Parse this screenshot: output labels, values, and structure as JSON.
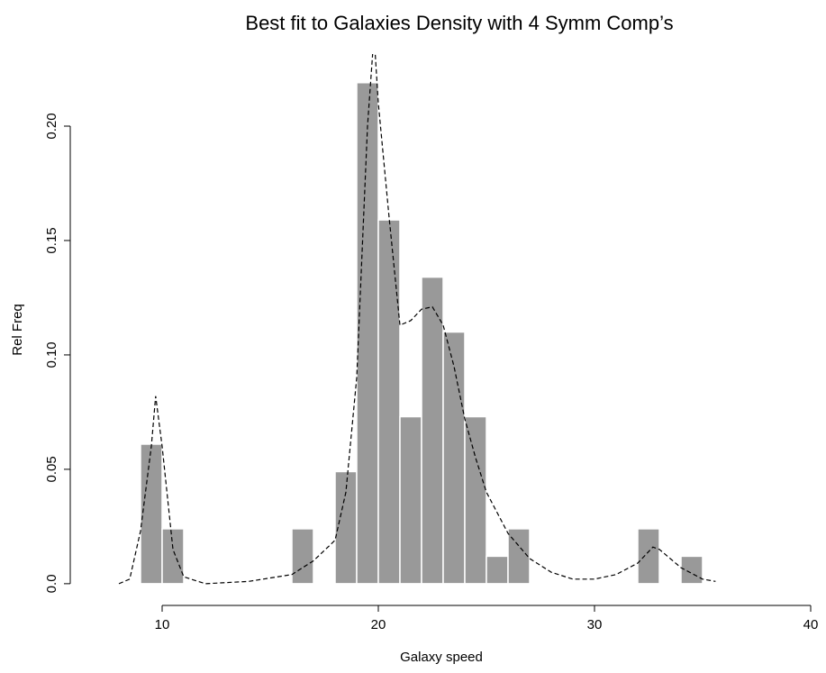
{
  "chart_data": {
    "type": "histogram",
    "title": "Best fit to Galaxies Density with  4 Symm Comp’s",
    "x_label": "Galaxy speed",
    "y_label": "Rel Freq",
    "bins": [
      9,
      10,
      11,
      12,
      13,
      14,
      15,
      16,
      17,
      18,
      19,
      20,
      21,
      22,
      23,
      24,
      25,
      26,
      27,
      28,
      29,
      30,
      31,
      32,
      33,
      34,
      35
    ],
    "values": [
      0.061,
      0.024,
      0,
      0,
      0,
      0,
      0,
      0.024,
      0,
      0.049,
      0.219,
      0.159,
      0.073,
      0.134,
      0.11,
      0.073,
      0.012,
      0.024,
      0,
      0,
      0,
      0,
      0,
      0.024,
      0,
      0.012
    ],
    "color": "#999999",
    "line": {
      "color": "#000000",
      "linestyle": "dashed",
      "x": [
        8,
        8.5,
        9,
        9.5,
        9.7,
        10,
        10.5,
        11,
        12,
        14,
        16,
        17,
        18,
        18.5,
        19,
        19.5,
        19.8,
        20,
        20.5,
        21,
        21.5,
        22,
        22.5,
        23,
        23.5,
        24,
        24.5,
        25,
        26,
        27,
        28,
        29,
        30,
        31,
        32,
        32.7,
        33,
        34,
        35,
        35.6
      ],
      "values": [
        0,
        0.002,
        0.023,
        0.06,
        0.082,
        0.06,
        0.015,
        0.003,
        0,
        0.001,
        0.004,
        0.01,
        0.019,
        0.04,
        0.09,
        0.2,
        0.24,
        0.21,
        0.16,
        0.113,
        0.115,
        0.12,
        0.121,
        0.113,
        0.095,
        0.072,
        0.055,
        0.04,
        0.022,
        0.011,
        0.005,
        0.002,
        0.002,
        0.004,
        0.009,
        0.016,
        0.015,
        0.007,
        0.002,
        0.001
      ]
    },
    "xlim": [
      5.75,
      40.5
    ],
    "ylim": [
      -0.0095,
      0.2315
    ],
    "xticks": [
      10,
      20,
      30,
      40
    ],
    "yticks": [
      {
        "value": 0,
        "label": "0.0"
      },
      0.05,
      {
        "value": 0.1,
        "label": "0.10"
      },
      {
        "value": 0.15,
        "label": "0.15"
      },
      {
        "value": 0.2,
        "label": "0.20"
      }
    ]
  }
}
